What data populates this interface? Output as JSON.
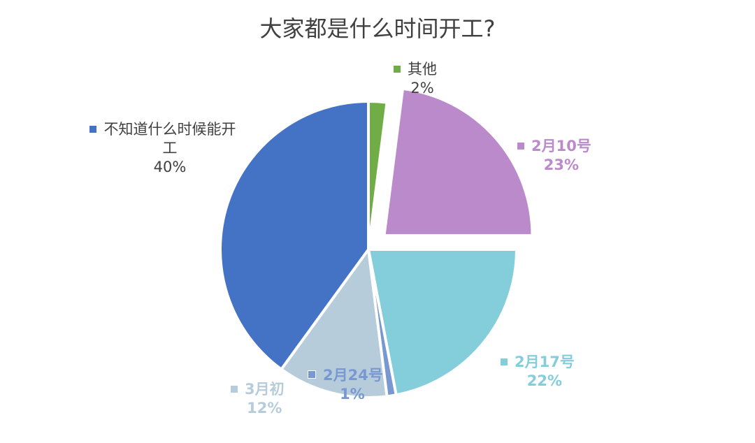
{
  "chart_data": {
    "type": "pie",
    "title": "大家都是什么时间开工?",
    "slices": [
      {
        "label": "其他",
        "percent_label": "2%",
        "value": 2,
        "color": "#70AD47",
        "exploded": false,
        "label_style": "normal"
      },
      {
        "label": "2月10号",
        "percent_label": "23%",
        "value": 23,
        "color": "#BB8ACB",
        "exploded": true,
        "label_style": "bold"
      },
      {
        "label": "2月17号",
        "percent_label": "22%",
        "value": 22,
        "color": "#84CDDB",
        "exploded": false,
        "label_style": "bold"
      },
      {
        "label": "2月24号",
        "percent_label": "1%",
        "value": 1,
        "color": "#7798D0",
        "exploded": false,
        "label_style": "bold"
      },
      {
        "label": "3月初",
        "percent_label": "12%",
        "value": 12,
        "color": "#B6CCDA",
        "exploded": false,
        "label_style": "bold"
      },
      {
        "label": "不知道什么时候能开工",
        "percent_label": "40%",
        "value": 40,
        "color": "#4472C4",
        "exploded": false,
        "label_style": "normal"
      }
    ]
  }
}
